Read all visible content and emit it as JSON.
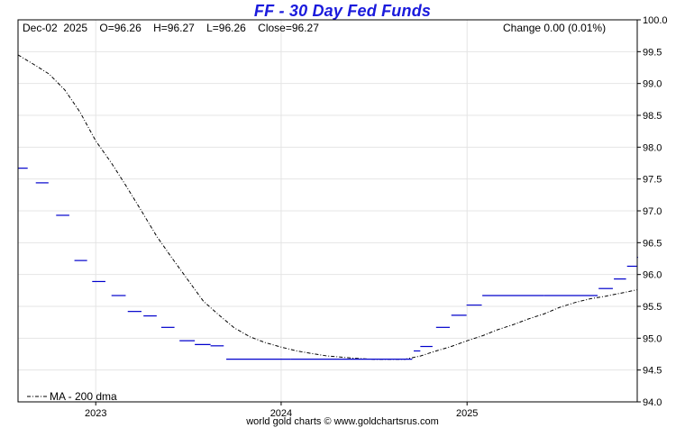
{
  "title": "FF  -  30 Day Fed Funds",
  "header": {
    "ohlc": "Dec-02  2025    O=96.26    H=96.27    L=96.26    Close=96.27",
    "change": "Change 0.00 (0.01%)"
  },
  "footer": {
    "credit": "world gold charts © www.goldchartsrus.com"
  },
  "legend": {
    "ma_label": "MA - 200 dma"
  },
  "colors": {
    "price": "#0000cc",
    "ma": "#000000",
    "grid": "#e4e4e4",
    "title": "#1a1adc"
  },
  "chart_data": {
    "type": "line",
    "x_range": [
      "2022-08-01",
      "2025-12-02"
    ],
    "ylim": [
      94.0,
      100.0
    ],
    "y_ticks": [
      94.0,
      94.5,
      95.0,
      95.5,
      96.0,
      96.5,
      97.0,
      97.5,
      98.0,
      98.5,
      99.0,
      99.5,
      100.0
    ],
    "x_ticks": [
      {
        "label": "2023",
        "date": "2023-01-01"
      },
      {
        "label": "2024",
        "date": "2024-01-01"
      },
      {
        "label": "2025",
        "date": "2025-01-01"
      }
    ],
    "grid": true,
    "series": [
      {
        "type": "step-line",
        "points": [
          {
            "start": "2022-08-01",
            "end": "2022-08-20",
            "value": 97.67
          },
          {
            "start": "2022-09-05",
            "end": "2022-09-30",
            "value": 97.44
          },
          {
            "start": "2022-10-15",
            "end": "2022-11-10",
            "value": 96.93
          },
          {
            "start": "2022-11-20",
            "end": "2022-12-15",
            "value": 96.22
          },
          {
            "start": "2022-12-25",
            "end": "2023-01-20",
            "value": 95.89
          },
          {
            "start": "2023-02-01",
            "end": "2023-03-01",
            "value": 95.67
          },
          {
            "start": "2023-03-05",
            "end": "2023-04-01",
            "value": 95.42
          },
          {
            "start": "2023-04-05",
            "end": "2023-05-01",
            "value": 95.35
          },
          {
            "start": "2023-05-10",
            "end": "2023-06-05",
            "value": 95.17
          },
          {
            "start": "2023-06-15",
            "end": "2023-07-15",
            "value": 94.96
          },
          {
            "start": "2023-07-15",
            "end": "2023-08-15",
            "value": 94.9
          },
          {
            "start": "2023-08-15",
            "end": "2023-09-10",
            "value": 94.88
          },
          {
            "start": "2023-09-15",
            "end": "2024-01-20",
            "value": 94.67
          },
          {
            "start": "2024-01-20",
            "end": "2024-08-15",
            "value": 94.67
          },
          {
            "start": "2024-08-15",
            "end": "2024-09-15",
            "value": 94.67
          },
          {
            "start": "2024-09-18",
            "end": "2024-10-01",
            "value": 94.8
          },
          {
            "start": "2024-10-01",
            "end": "2024-10-25",
            "value": 94.87
          },
          {
            "start": "2024-11-01",
            "end": "2024-11-28",
            "value": 95.17
          },
          {
            "start": "2024-12-01",
            "end": "2024-12-31",
            "value": 95.36
          },
          {
            "start": "2024-12-31",
            "end": "2025-01-30",
            "value": 95.52
          },
          {
            "start": "2025-01-31",
            "end": "2025-06-01",
            "value": 95.67
          },
          {
            "start": "2025-06-01",
            "end": "2025-09-15",
            "value": 95.67
          },
          {
            "start": "2025-09-17",
            "end": "2025-10-15",
            "value": 95.78
          },
          {
            "start": "2025-10-17",
            "end": "2025-11-10",
            "value": 95.93
          },
          {
            "start": "2025-11-12",
            "end": "2025-12-01",
            "value": 96.13
          },
          {
            "start": "2025-12-01",
            "end": "2025-12-02",
            "value": 96.27
          }
        ]
      },
      {
        "name": "MA - 200 dma",
        "type": "line",
        "x": [
          "2022-08-01",
          "2022-09-01",
          "2022-10-01",
          "2022-11-01",
          "2022-12-01",
          "2023-01-01",
          "2023-02-01",
          "2023-03-01",
          "2023-04-01",
          "2023-05-01",
          "2023-06-01",
          "2023-07-01",
          "2023-08-01",
          "2023-09-01",
          "2023-10-01",
          "2023-11-01",
          "2023-12-01",
          "2024-01-01",
          "2024-02-01",
          "2024-03-01",
          "2024-04-01",
          "2024-05-01",
          "2024-06-01",
          "2024-07-01",
          "2024-08-01",
          "2024-09-01",
          "2024-10-01",
          "2024-11-01",
          "2024-12-01",
          "2025-01-01",
          "2025-02-01",
          "2025-03-01",
          "2025-04-01",
          "2025-05-01",
          "2025-06-01",
          "2025-07-01",
          "2025-08-01",
          "2025-09-01",
          "2025-10-01",
          "2025-11-01",
          "2025-12-02"
        ],
        "values": [
          99.45,
          99.3,
          99.15,
          98.9,
          98.55,
          98.1,
          97.75,
          97.4,
          97.0,
          96.6,
          96.25,
          95.92,
          95.58,
          95.36,
          95.16,
          95.02,
          94.93,
          94.86,
          94.8,
          94.76,
          94.72,
          94.7,
          94.68,
          94.67,
          94.67,
          94.67,
          94.72,
          94.8,
          94.87,
          94.96,
          95.04,
          95.13,
          95.21,
          95.3,
          95.38,
          95.48,
          95.56,
          95.62,
          95.66,
          95.71,
          95.76
        ]
      }
    ]
  }
}
